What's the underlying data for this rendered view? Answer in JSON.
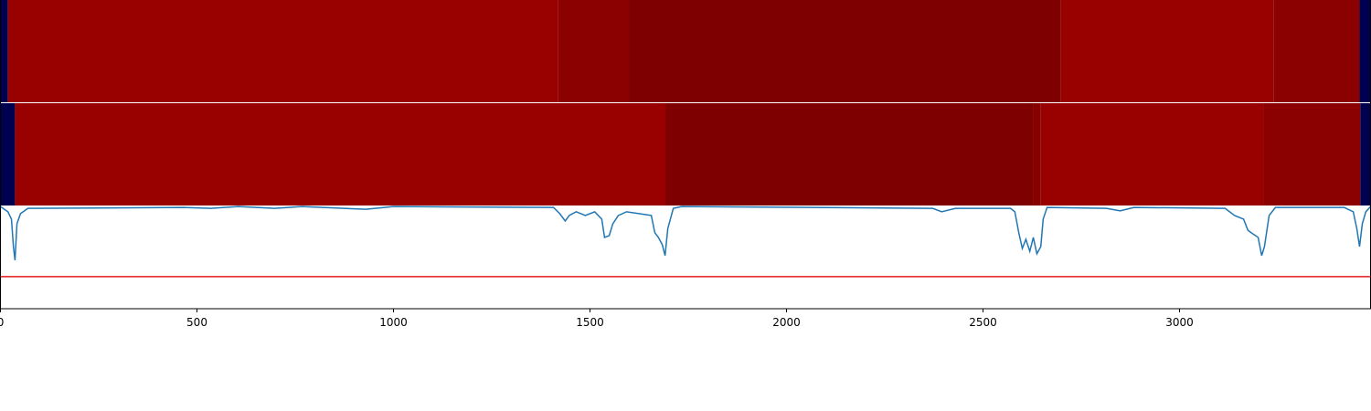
{
  "chart_data": {
    "type": "line",
    "xlim": [
      0,
      3486
    ],
    "ylim": [
      0,
      100
    ],
    "xticks": [
      0,
      500,
      1000,
      1500,
      2000,
      2500,
      3000
    ],
    "series": [
      {
        "color": "#1f77b4",
        "x": [
          0,
          19,
          28,
          33,
          37,
          42,
          51,
          70,
          465,
          535,
          605,
          698,
          767,
          930,
          1000,
          1407,
          1423,
          1437,
          1447,
          1465,
          1488,
          1512,
          1530,
          1537,
          1549,
          1558,
          1572,
          1593,
          1640,
          1656,
          1665,
          1674,
          1684,
          1691,
          1698,
          1712,
          1733,
          2372,
          2395,
          2430,
          2570,
          2581,
          2591,
          2600,
          2609,
          2619,
          2628,
          2637,
          2647,
          2653,
          2663,
          2814,
          2849,
          2884,
          3116,
          3140,
          3163,
          3174,
          3186,
          3200,
          3209,
          3216,
          3228,
          3244,
          3419,
          3442,
          3451,
          3458,
          3465,
          3474,
          3486
        ],
        "values": [
          33.1,
          31.4,
          29.0,
          20.1,
          15.7,
          27.5,
          30.8,
          32.5,
          32.8,
          32.5,
          33.1,
          32.5,
          33.1,
          32.2,
          33.1,
          32.8,
          30.8,
          28.4,
          30.2,
          31.4,
          30.2,
          31.4,
          29.0,
          23.1,
          23.7,
          27.5,
          30.2,
          31.4,
          30.5,
          30.2,
          24.6,
          23.1,
          20.7,
          17.2,
          26.0,
          32.5,
          33.1,
          32.5,
          31.4,
          32.5,
          32.5,
          31.4,
          24.6,
          19.5,
          22.5,
          18.6,
          23.1,
          17.8,
          20.1,
          29.0,
          32.8,
          32.5,
          31.7,
          32.8,
          32.5,
          30.2,
          29.0,
          25.4,
          24.3,
          23.1,
          17.2,
          20.1,
          30.2,
          32.8,
          32.8,
          31.4,
          26.0,
          20.1,
          27.5,
          31.4,
          33.1
        ]
      }
    ],
    "hline": {
      "value": 10.4,
      "color": "#e41a1c"
    },
    "strips": [
      {
        "segments": [
          {
            "start": 0,
            "end": 19,
            "color": "#000050"
          },
          {
            "start": 19,
            "end": 1419,
            "color": "#990000"
          },
          {
            "start": 1419,
            "end": 1600,
            "color": "#8b0000"
          },
          {
            "start": 1600,
            "end": 2698,
            "color": "#7f0000"
          },
          {
            "start": 2698,
            "end": 3240,
            "color": "#990000"
          },
          {
            "start": 3240,
            "end": 3458,
            "color": "#8b0000"
          },
          {
            "start": 3458,
            "end": 3486,
            "color": "#000050"
          }
        ]
      },
      {
        "segments": [
          {
            "start": 0,
            "end": 37,
            "color": "#000050"
          },
          {
            "start": 37,
            "end": 1693,
            "color": "#990000"
          },
          {
            "start": 1693,
            "end": 2628,
            "color": "#7f0000"
          },
          {
            "start": 2628,
            "end": 2647,
            "color": "#860000"
          },
          {
            "start": 2647,
            "end": 3214,
            "color": "#990000"
          },
          {
            "start": 3214,
            "end": 3460,
            "color": "#8b0000"
          },
          {
            "start": 3460,
            "end": 3486,
            "color": "#000050"
          }
        ]
      }
    ]
  }
}
